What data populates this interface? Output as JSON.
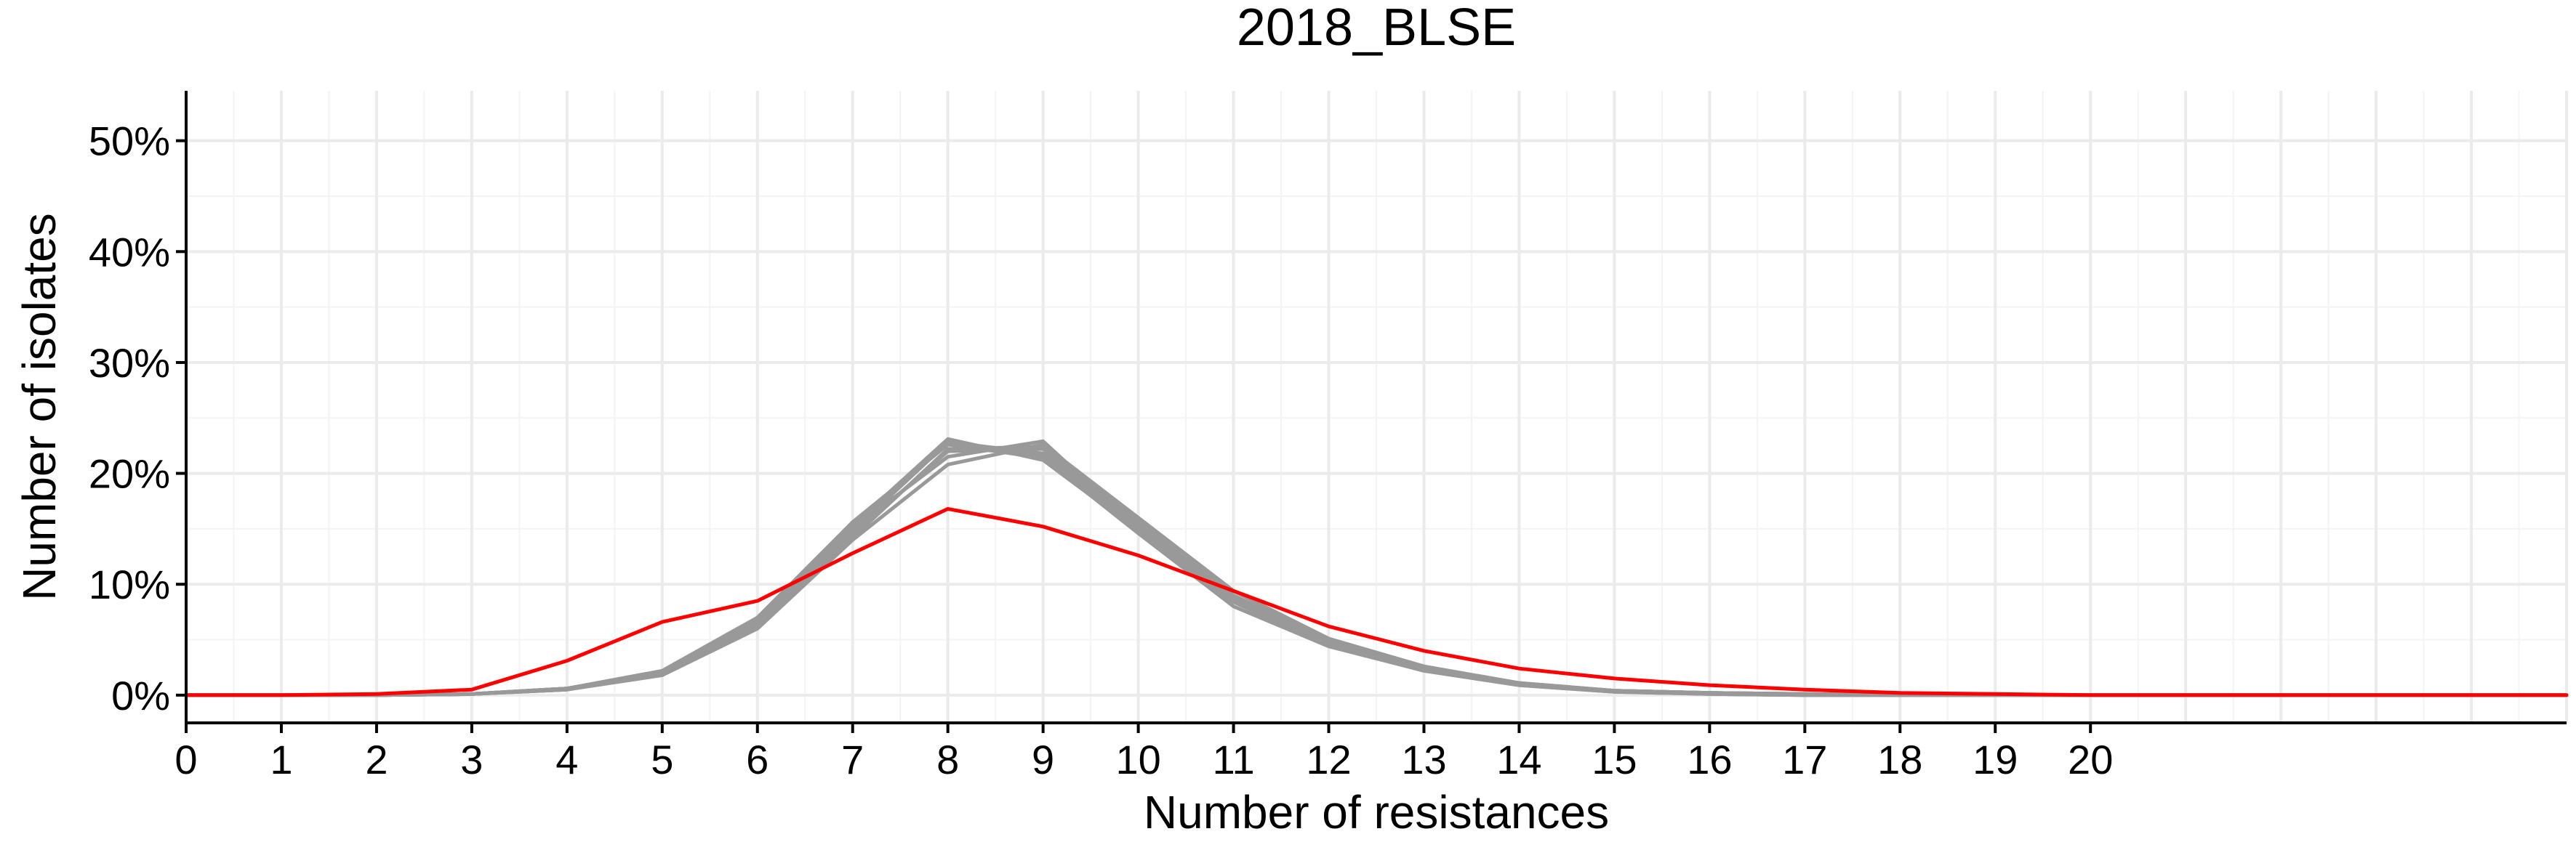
{
  "chart_data": {
    "type": "line",
    "title": "2018_BLSE",
    "xlabel": "Number of resistances",
    "ylabel": "Number of isolates",
    "x_ticks": [
      "0",
      "1",
      "2",
      "3",
      "4",
      "5",
      "6",
      "7",
      "8",
      "9",
      "10",
      "11",
      "12",
      "13",
      "14",
      "15",
      "16",
      "17",
      "18",
      "19",
      "20"
    ],
    "y_ticks": [
      "0%",
      "10%",
      "20%",
      "30%",
      "40%",
      "50%"
    ],
    "xlim": [
      0,
      25
    ],
    "ylim": [
      -2.5,
      54.5
    ],
    "grid": true,
    "colors": {
      "simulated": "#999999",
      "observed": "#ff0000"
    },
    "x": [
      0,
      1,
      2,
      3,
      4,
      5,
      6,
      7,
      8,
      9,
      10,
      11,
      12,
      13,
      14,
      15,
      16,
      17,
      18,
      19,
      20,
      21,
      22,
      23,
      24,
      25
    ],
    "series": [
      {
        "kind": "simulated",
        "values": [
          0,
          0,
          0,
          0.1,
          0.6,
          2.0,
          6.5,
          14.8,
          22.8,
          21.8,
          15.2,
          8.8,
          4.8,
          2.4,
          1.0,
          0.4,
          0.2,
          0.1,
          0,
          0,
          0,
          0,
          0,
          0,
          0,
          0
        ]
      },
      {
        "kind": "simulated",
        "values": [
          0,
          0,
          0,
          0.1,
          0.6,
          2.1,
          6.8,
          15.3,
          23.1,
          21.2,
          14.8,
          8.6,
          4.6,
          2.3,
          1.1,
          0.4,
          0.2,
          0.1,
          0,
          0,
          0,
          0,
          0,
          0,
          0,
          0
        ]
      },
      {
        "kind": "simulated",
        "values": [
          0,
          0,
          0,
          0.1,
          0.5,
          1.9,
          6.2,
          14.2,
          22.2,
          22.4,
          15.6,
          9.0,
          4.9,
          2.5,
          1.0,
          0.4,
          0.2,
          0.1,
          0,
          0,
          0,
          0,
          0,
          0,
          0,
          0
        ]
      },
      {
        "kind": "simulated",
        "values": [
          0,
          0,
          0,
          0.1,
          0.6,
          2.0,
          6.6,
          15.0,
          21.5,
          22.9,
          15.0,
          8.4,
          4.5,
          2.2,
          0.9,
          0.3,
          0.1,
          0,
          0,
          0,
          0,
          0,
          0,
          0,
          0,
          0
        ]
      },
      {
        "kind": "simulated",
        "values": [
          0,
          0,
          0,
          0.1,
          0.5,
          1.8,
          6.0,
          14.0,
          20.8,
          22.6,
          16.0,
          9.4,
          5.1,
          2.6,
          1.1,
          0.4,
          0.2,
          0.1,
          0,
          0,
          0,
          0,
          0,
          0,
          0,
          0
        ]
      },
      {
        "kind": "simulated",
        "values": [
          0,
          0,
          0,
          0.1,
          0.6,
          2.2,
          7.0,
          15.6,
          22.6,
          21.4,
          14.6,
          8.0,
          4.4,
          2.2,
          0.9,
          0.3,
          0.1,
          0,
          0,
          0,
          0,
          0,
          0,
          0,
          0,
          0
        ]
      },
      {
        "kind": "simulated",
        "values": [
          0,
          0,
          0,
          0.1,
          0.5,
          1.9,
          6.4,
          14.5,
          22.0,
          22.2,
          15.4,
          8.9,
          4.7,
          2.4,
          1.0,
          0.4,
          0.2,
          0.1,
          0,
          0,
          0,
          0,
          0,
          0,
          0,
          0
        ]
      },
      {
        "kind": "simulated",
        "values": [
          0,
          0,
          0,
          0.1,
          0.6,
          2.0,
          6.7,
          15.1,
          22.9,
          21.6,
          15.0,
          8.7,
          4.6,
          2.3,
          1.0,
          0.4,
          0.1,
          0,
          0,
          0,
          0,
          0,
          0,
          0,
          0,
          0
        ]
      },
      {
        "kind": "observed",
        "values": [
          0,
          0,
          0.1,
          0.5,
          3.1,
          6.6,
          8.5,
          12.8,
          16.8,
          15.2,
          12.6,
          9.4,
          6.2,
          4.0,
          2.4,
          1.5,
          0.9,
          0.5,
          0.2,
          0.1,
          0,
          0,
          0,
          0,
          0,
          0
        ]
      }
    ]
  }
}
